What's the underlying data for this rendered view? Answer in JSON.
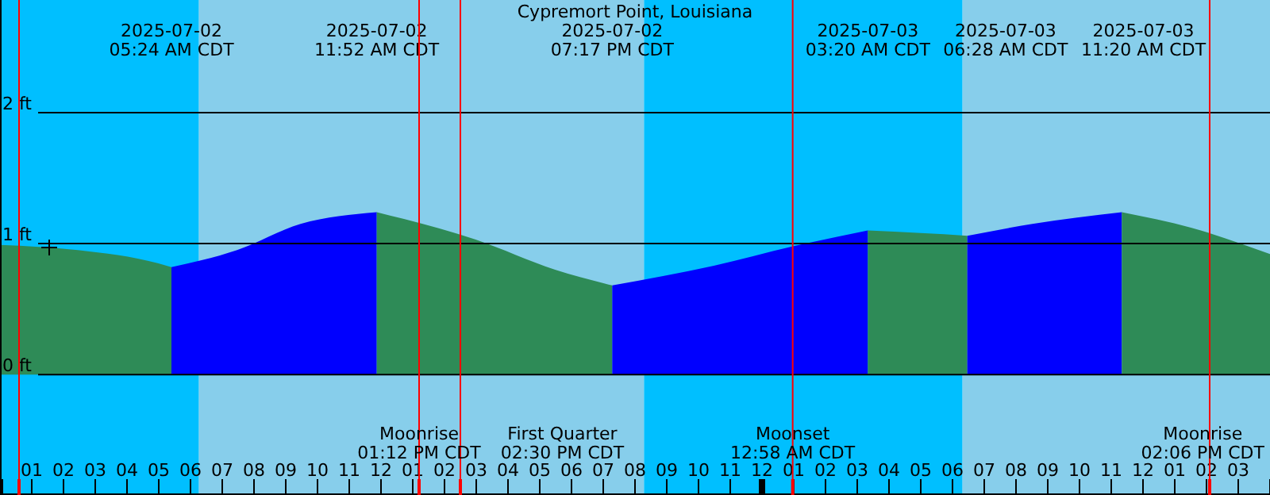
{
  "chart_data": {
    "type": "area",
    "title": "Cypremort Point, Louisiana",
    "series": [
      {
        "color": "#2e8b57",
        "x": [
          "2025-07-02T00:00",
          "2025-07-02T02:27",
          "2025-07-02T04:58",
          "2025-07-02T05:24"
        ],
        "values": [
          0.99,
          0.95,
          0.85,
          0.82
        ]
      },
      {
        "color": "#0000ff",
        "x": [
          "2025-07-02T05:24",
          "2025-07-02T07:28",
          "2025-07-02T09:28",
          "2025-07-02T11:52"
        ],
        "values": [
          0.82,
          0.95,
          1.15,
          1.24
        ]
      },
      {
        "color": "#2e8b57",
        "x": [
          "2025-07-02T11:52",
          "2025-07-02T14:59",
          "2025-07-02T17:29",
          "2025-07-02T19:17"
        ],
        "values": [
          1.24,
          1.03,
          0.8,
          0.68
        ]
      },
      {
        "color": "#0000ff",
        "x": [
          "2025-07-02T19:17",
          "2025-07-02T22:29",
          "2025-07-03T01:00",
          "2025-07-03T03:20"
        ],
        "values": [
          0.68,
          0.83,
          0.98,
          1.1
        ]
      },
      {
        "color": "#2e8b57",
        "x": [
          "2025-07-03T03:20",
          "2025-07-03T05:00",
          "2025-07-03T06:28"
        ],
        "values": [
          1.1,
          1.08,
          1.06
        ]
      },
      {
        "color": "#0000ff",
        "x": [
          "2025-07-03T06:28",
          "2025-07-03T08:31",
          "2025-07-03T11:20"
        ],
        "values": [
          1.06,
          1.15,
          1.24
        ]
      },
      {
        "color": "#2e8b57",
        "x": [
          "2025-07-03T11:20",
          "2025-07-03T13:32",
          "2025-07-03T16:00"
        ],
        "values": [
          1.24,
          1.12,
          0.92
        ]
      }
    ],
    "xlim": [
      "2025-07-02T00:00",
      "2025-07-03T16:00"
    ],
    "xticks": [
      {
        "value": "2025-07-02T00:00",
        "label": null
      },
      {
        "value": "2025-07-02T01:00",
        "label": "01"
      },
      {
        "value": "2025-07-02T02:00",
        "label": "02"
      },
      {
        "value": "2025-07-02T03:00",
        "label": "03"
      },
      {
        "value": "2025-07-02T04:00",
        "label": "04"
      },
      {
        "value": "2025-07-02T05:00",
        "label": "05"
      },
      {
        "value": "2025-07-02T06:00",
        "label": "06"
      },
      {
        "value": "2025-07-02T07:00",
        "label": "07"
      },
      {
        "value": "2025-07-02T08:00",
        "label": "08"
      },
      {
        "value": "2025-07-02T09:00",
        "label": "09"
      },
      {
        "value": "2025-07-02T10:00",
        "label": "10"
      },
      {
        "value": "2025-07-02T11:00",
        "label": "11"
      },
      {
        "value": "2025-07-02T12:00",
        "label": "12"
      },
      {
        "value": "2025-07-02T13:00",
        "label": "01"
      },
      {
        "value": "2025-07-02T14:00",
        "label": "02"
      },
      {
        "value": "2025-07-02T15:00",
        "label": "03"
      },
      {
        "value": "2025-07-02T16:00",
        "label": "04"
      },
      {
        "value": "2025-07-02T17:00",
        "label": "05"
      },
      {
        "value": "2025-07-02T18:00",
        "label": "06"
      },
      {
        "value": "2025-07-02T19:00",
        "label": "07"
      },
      {
        "value": "2025-07-02T20:00",
        "label": "08"
      },
      {
        "value": "2025-07-02T21:00",
        "label": "09"
      },
      {
        "value": "2025-07-02T22:00",
        "label": "10"
      },
      {
        "value": "2025-07-02T23:00",
        "label": "11"
      },
      {
        "value": "2025-07-03T00:00",
        "label": "12"
      },
      {
        "value": "2025-07-03T01:00",
        "label": "01"
      },
      {
        "value": "2025-07-03T02:00",
        "label": "02"
      },
      {
        "value": "2025-07-03T03:00",
        "label": "03"
      },
      {
        "value": "2025-07-03T04:00",
        "label": "04"
      },
      {
        "value": "2025-07-03T05:00",
        "label": "05"
      },
      {
        "value": "2025-07-03T06:00",
        "label": "06"
      },
      {
        "value": "2025-07-03T07:00",
        "label": "07"
      },
      {
        "value": "2025-07-03T08:00",
        "label": "08"
      },
      {
        "value": "2025-07-03T09:00",
        "label": "09"
      },
      {
        "value": "2025-07-03T10:00",
        "label": "10"
      },
      {
        "value": "2025-07-03T11:00",
        "label": "11"
      },
      {
        "value": "2025-07-03T12:00",
        "label": "12"
      },
      {
        "value": "2025-07-03T13:00",
        "label": "01"
      },
      {
        "value": "2025-07-03T14:00",
        "label": "02"
      },
      {
        "value": "2025-07-03T15:00",
        "label": "03"
      },
      {
        "value": "2025-07-03T16:00",
        "label": null
      }
    ],
    "ylim": [
      -0.92,
      2.86
    ],
    "yticks": [
      {
        "value": 0,
        "label": "0 ft"
      },
      {
        "value": 1,
        "label": "1 ft"
      },
      {
        "value": 2,
        "label": "2 ft"
      }
    ],
    "grid": "y",
    "bands": [
      {
        "axis": "x",
        "from": "2025-07-02T00:00",
        "to": "2025-07-02T06:16",
        "color": "#00bfff"
      },
      {
        "axis": "x",
        "from": "2025-07-02T06:16",
        "to": "2025-07-02T20:17",
        "color": "#87ceeb"
      },
      {
        "axis": "x",
        "from": "2025-07-02T20:17",
        "to": "2025-07-03T06:19",
        "color": "#00bfff"
      },
      {
        "axis": "x",
        "from": "2025-07-03T06:19",
        "to": "2025-07-03T16:00",
        "color": "#87ceeb"
      }
    ],
    "ref_lines": [
      {
        "axis": "x",
        "value": "2025-07-02T00:36",
        "color": "#ff0000"
      },
      {
        "axis": "x",
        "value": "2025-07-02T13:12",
        "label": "Moonrise\n01:12 PM CDT",
        "color": "#ff0000"
      },
      {
        "axis": "x",
        "value": "2025-07-02T14:30",
        "label": "First Quarter\n02:30 PM CDT",
        "color": "#ff0000"
      },
      {
        "axis": "x",
        "value": "2025-07-03T00:58",
        "label": "Moonset\n12:58 AM CDT",
        "color": "#ff0000"
      },
      {
        "axis": "x",
        "value": "2025-07-03T14:06",
        "label": "Moonrise\n02:06 PM CDT",
        "color": "#ff0000"
      }
    ],
    "annotations": [
      "2025-07-02\n05:24 AM CDT",
      "2025-07-02\n11:52 AM CDT",
      "2025-07-02\n07:17 PM CDT",
      "2025-07-03\n03:20 AM CDT",
      "2025-07-03\n06:28 AM CDT",
      "2025-07-03\n11:20 AM CDT"
    ]
  }
}
